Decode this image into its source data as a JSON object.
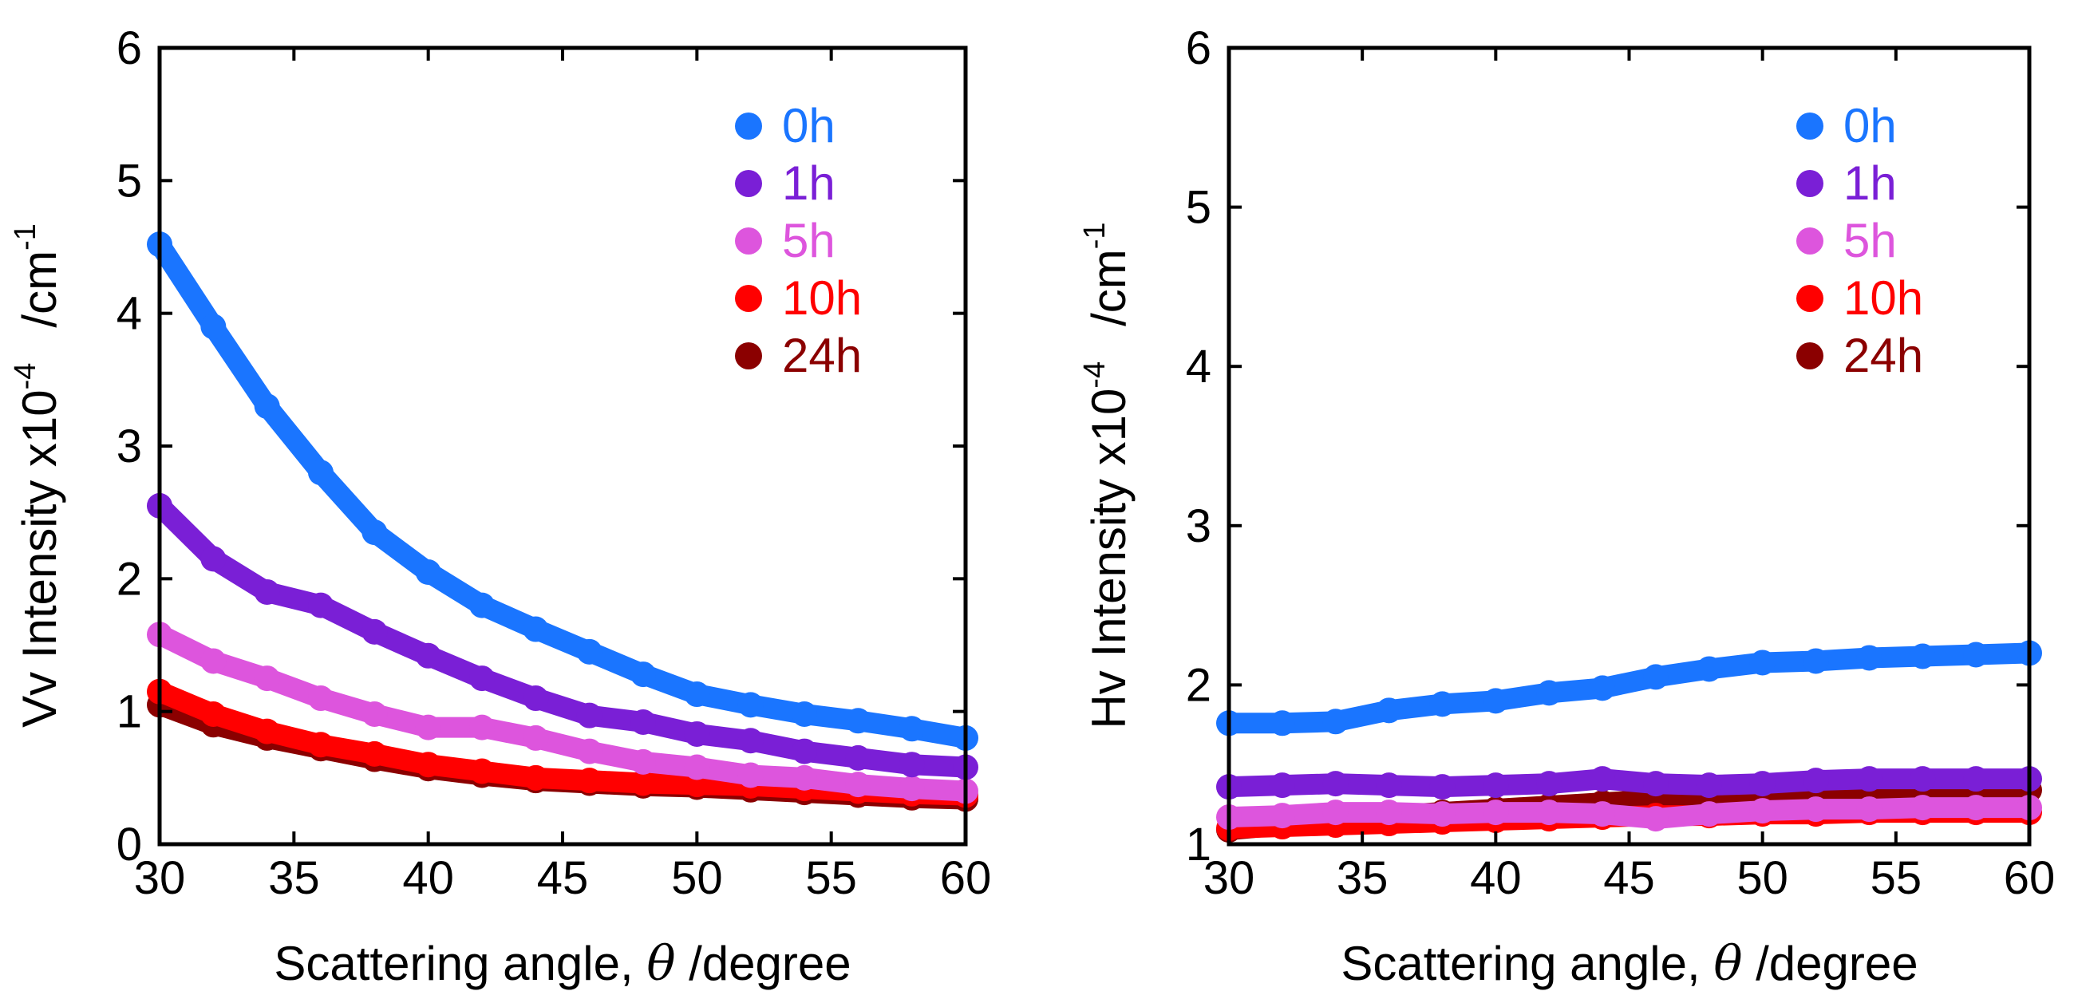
{
  "chart_data": [
    {
      "type": "line",
      "name": "vv-chart",
      "xlabel": "Scattering angle,",
      "xlabel_symbol": "θ",
      "xlabel_unit": "/degree",
      "ylabel_main": "Vv Intensity x10",
      "ylabel_exp": "-4",
      "ylabel_unit": "/cm",
      "ylabel_unit_exp": "-1",
      "xlim": [
        30,
        60
      ],
      "ylim": [
        0,
        6
      ],
      "xticks": [
        "30",
        "35",
        "40",
        "45",
        "50",
        "55",
        "60"
      ],
      "yticks": [
        "0",
        "1",
        "2",
        "3",
        "4",
        "5",
        "6"
      ],
      "legend_position": "top-right",
      "x": [
        30,
        32,
        34,
        36,
        38,
        40,
        42,
        44,
        46,
        48,
        50,
        52,
        54,
        56,
        58,
        60
      ],
      "series": [
        {
          "name": "0h",
          "color": "#1a75ff",
          "values": [
            4.52,
            3.9,
            3.3,
            2.8,
            2.35,
            2.05,
            1.8,
            1.62,
            1.45,
            1.28,
            1.13,
            1.05,
            0.98,
            0.93,
            0.87,
            0.8
          ]
        },
        {
          "name": "1h",
          "color": "#7a1fd6",
          "values": [
            2.55,
            2.15,
            1.9,
            1.8,
            1.6,
            1.42,
            1.25,
            1.1,
            0.97,
            0.92,
            0.83,
            0.78,
            0.7,
            0.65,
            0.6,
            0.58
          ]
        },
        {
          "name": "5h",
          "color": "#dd55dd",
          "values": [
            1.58,
            1.38,
            1.25,
            1.1,
            0.98,
            0.88,
            0.88,
            0.8,
            0.7,
            0.62,
            0.58,
            0.52,
            0.5,
            0.45,
            0.42,
            0.4
          ]
        },
        {
          "name": "10h",
          "color": "#ff0000",
          "values": [
            1.15,
            0.98,
            0.85,
            0.75,
            0.68,
            0.6,
            0.55,
            0.5,
            0.48,
            0.46,
            0.45,
            0.44,
            0.42,
            0.4,
            0.38,
            0.37
          ]
        },
        {
          "name": "24h",
          "color": "#8b0000",
          "values": [
            1.05,
            0.9,
            0.8,
            0.72,
            0.64,
            0.57,
            0.52,
            0.48,
            0.46,
            0.44,
            0.43,
            0.41,
            0.39,
            0.37,
            0.35,
            0.34
          ]
        }
      ]
    },
    {
      "type": "line",
      "name": "hv-chart",
      "xlabel": "Scattering angle,",
      "xlabel_symbol": "θ",
      "xlabel_unit": "/degree",
      "ylabel_main": "Hv Intensity x10",
      "ylabel_exp": "-4",
      "ylabel_unit": "/cm",
      "ylabel_unit_exp": "-1",
      "xlim": [
        30,
        60
      ],
      "ylim": [
        1,
        6
      ],
      "xticks": [
        "30",
        "35",
        "40",
        "45",
        "50",
        "55",
        "60"
      ],
      "yticks": [
        "1",
        "2",
        "3",
        "4",
        "5",
        "6"
      ],
      "legend_position": "top-right",
      "x": [
        30,
        32,
        34,
        36,
        38,
        40,
        42,
        44,
        46,
        48,
        50,
        52,
        54,
        56,
        58,
        60
      ],
      "series": [
        {
          "name": "0h",
          "color": "#1a75ff",
          "values": [
            1.76,
            1.76,
            1.77,
            1.84,
            1.88,
            1.9,
            1.95,
            1.98,
            2.05,
            2.1,
            2.14,
            2.15,
            2.17,
            2.18,
            2.19,
            2.2
          ]
        },
        {
          "name": "1h",
          "color": "#7a1fd6",
          "values": [
            1.36,
            1.37,
            1.38,
            1.37,
            1.36,
            1.37,
            1.38,
            1.41,
            1.38,
            1.37,
            1.38,
            1.4,
            1.41,
            1.41,
            1.41,
            1.41
          ]
        },
        {
          "name": "5h",
          "color": "#dd55dd",
          "values": [
            1.17,
            1.18,
            1.2,
            1.2,
            1.19,
            1.2,
            1.2,
            1.19,
            1.16,
            1.19,
            1.21,
            1.22,
            1.22,
            1.23,
            1.23,
            1.23
          ]
        },
        {
          "name": "10h",
          "color": "#ff0000",
          "values": [
            1.1,
            1.11,
            1.12,
            1.13,
            1.14,
            1.15,
            1.16,
            1.17,
            1.18,
            1.18,
            1.19,
            1.19,
            1.2,
            1.2,
            1.2,
            1.2
          ]
        },
        {
          "name": "24h",
          "color": "#8b0000",
          "values": [
            1.09,
            1.12,
            1.15,
            1.18,
            1.2,
            1.22,
            1.24,
            1.26,
            1.28,
            1.29,
            1.3,
            1.31,
            1.32,
            1.33,
            1.34,
            1.34
          ]
        }
      ]
    }
  ]
}
